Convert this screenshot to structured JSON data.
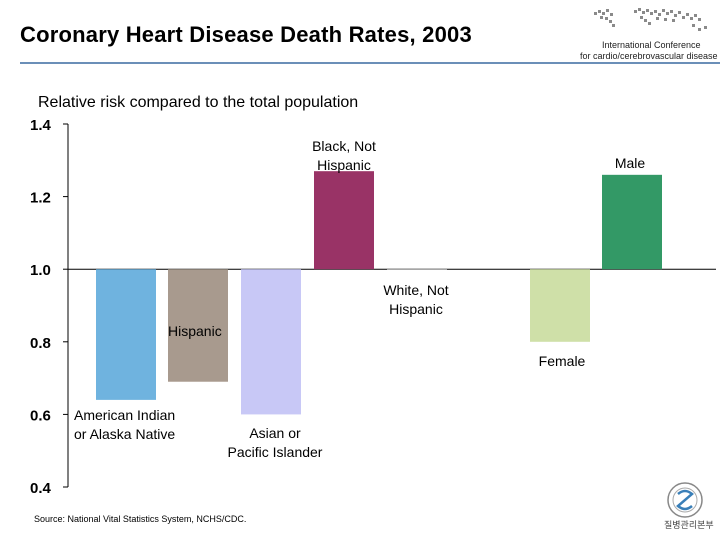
{
  "title": "Coronary Heart Disease Death Rates, 2003",
  "conference": {
    "line1": "International Conference",
    "line2": "for cardio/cerebrovascular disease"
  },
  "source": "Source: National Vital Statistics System, NCHS/CDC.",
  "seal_text": "질병관리본부",
  "chart_data": {
    "type": "bar",
    "title": "Coronary Heart Disease Death Rates, 2003",
    "ylabel": "Relative risk compared to the total population",
    "baseline": 1.0,
    "ylim": [
      0.4,
      1.4
    ],
    "yticks": [
      "1.4",
      "1.2",
      "1.0",
      "0.8",
      "0.6",
      "0.4"
    ],
    "grid": false,
    "categories": [
      [
        "American Indian",
        "or Alaska Native"
      ],
      [
        "Hispanic"
      ],
      [
        "Asian or",
        "Pacific Islander"
      ],
      [
        "Black, Not",
        "Hispanic"
      ],
      [
        "White, Not",
        "Hispanic"
      ],
      [
        "Female"
      ],
      [
        "Male"
      ]
    ],
    "values": [
      0.64,
      0.69,
      0.6,
      1.27,
      1.0,
      0.8,
      1.26
    ],
    "colors": [
      "#6fb3df",
      "#a89a8e",
      "#c8c8f6",
      "#993366",
      "#ffffff",
      "#cfe0a8",
      "#339966"
    ]
  }
}
